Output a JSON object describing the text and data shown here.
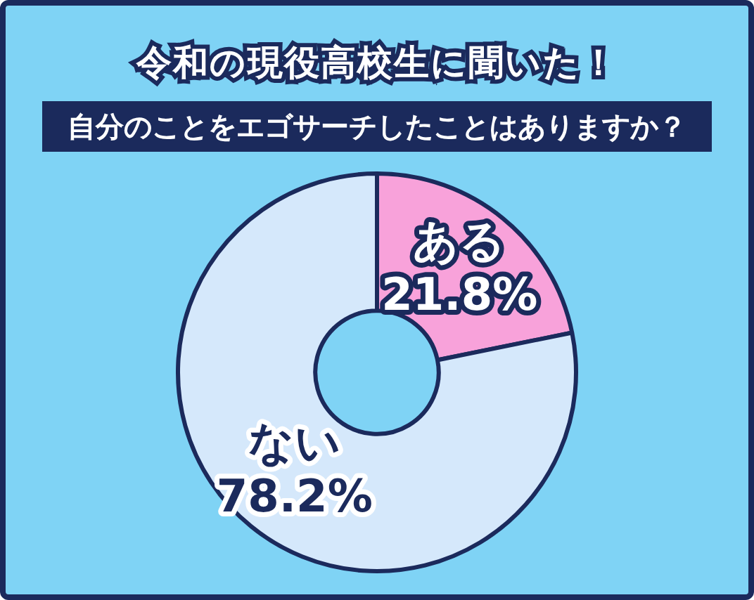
{
  "chart_data": {
    "type": "donut",
    "title": "令和の現役高校生に聞いた！",
    "subtitle": "自分のことをエゴサーチしたことはありますか？",
    "categories": [
      "ある",
      "ない"
    ],
    "values": [
      21.8,
      78.2
    ],
    "colors": [
      "#f8a2da",
      "#d5e8fb"
    ],
    "value_labels": [
      "21.8%",
      "78.2%"
    ],
    "legend": false
  }
}
